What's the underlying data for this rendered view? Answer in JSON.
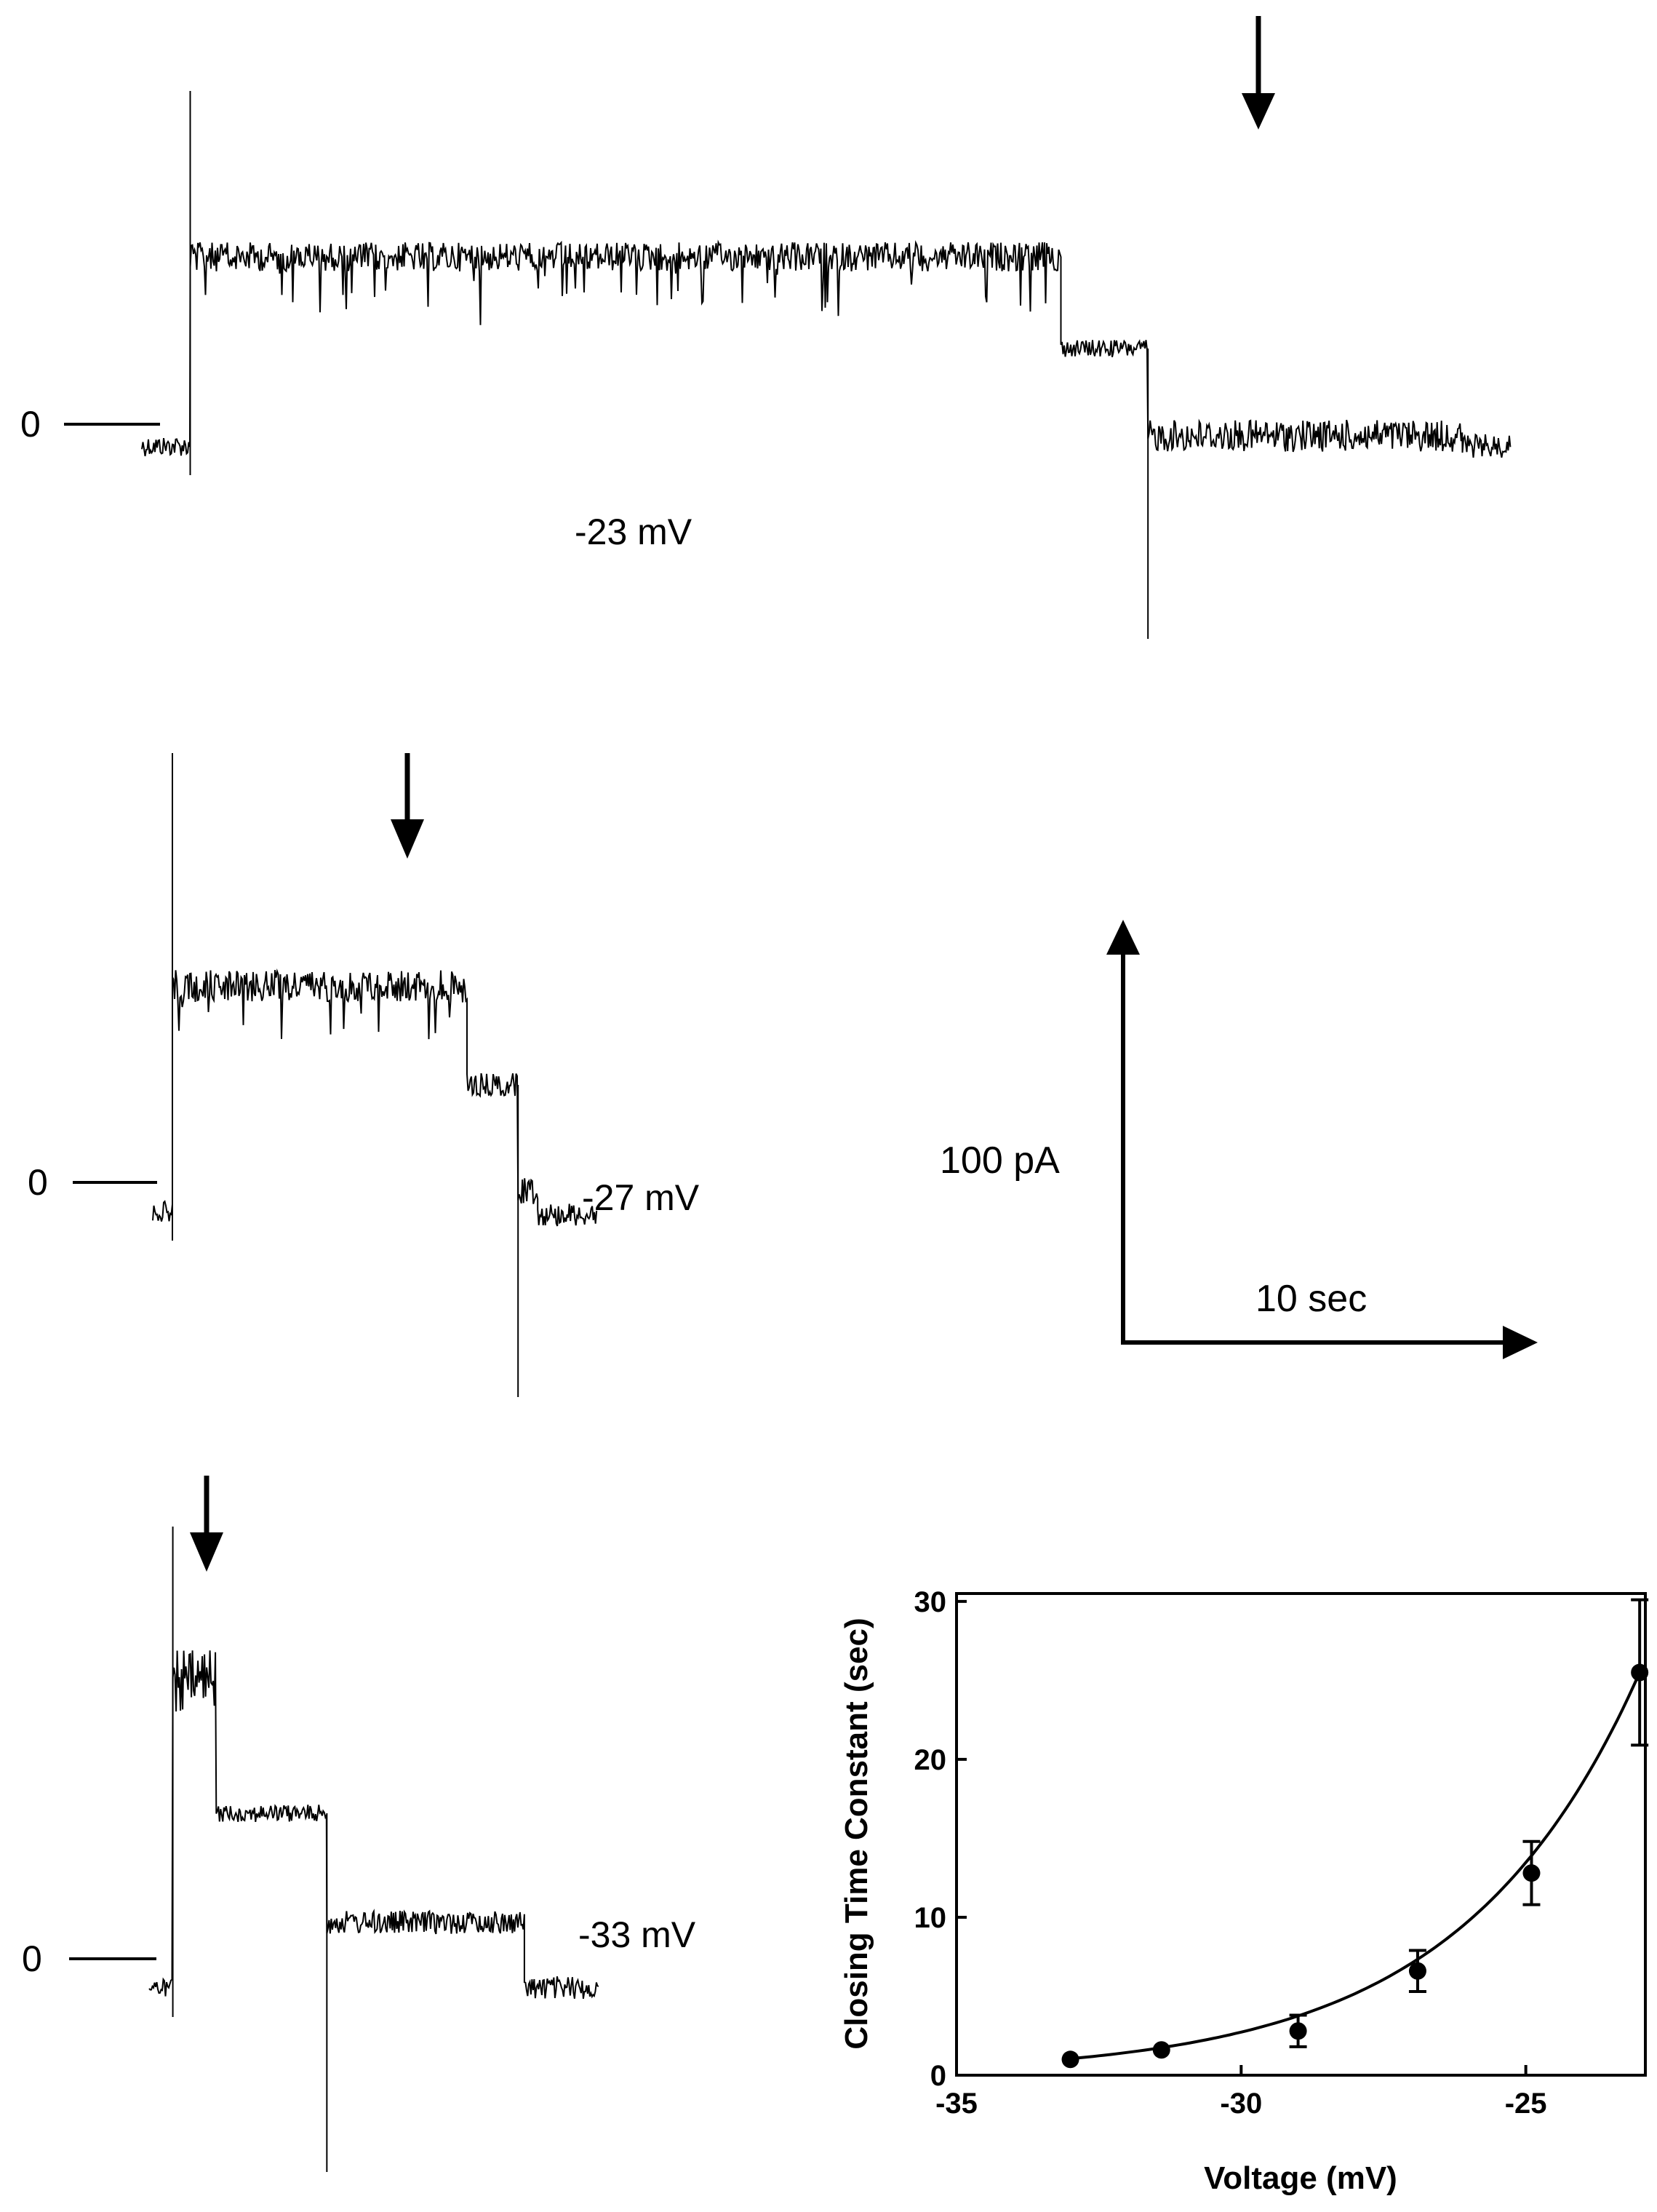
{
  "zero_label": "0",
  "traces": [
    {
      "voltage_label": "-23 mV",
      "segments": [
        {
          "name": "baseline-start",
          "t": [
            0,
            1.0
          ],
          "y": -15,
          "noise": 7
        },
        {
          "name": "open-level",
          "t": [
            1.0,
            19.0
          ],
          "y": 115,
          "noise": 10,
          "flicker": 40
        },
        {
          "name": "intermediate-level",
          "t": [
            19.0,
            20.8
          ],
          "y": 52,
          "noise": 6
        },
        {
          "name": "lower-level",
          "t": [
            20.8,
            27.3
          ],
          "y": -8,
          "noise": 11
        },
        {
          "name": "baseline-end",
          "t": [
            27.3,
            28.3
          ],
          "y": -15,
          "noise": 8
        }
      ]
    },
    {
      "voltage_label": "-27 mV",
      "segments": [
        {
          "name": "baseline-start",
          "t": [
            0,
            0.5
          ],
          "y": -20,
          "noise": 7
        },
        {
          "name": "open-level",
          "t": [
            0.5,
            8.0
          ],
          "y": 135,
          "noise": 11,
          "flicker": 35
        },
        {
          "name": "intermediate-level",
          "t": [
            8.0,
            9.3
          ],
          "y": 67,
          "noise": 8
        },
        {
          "name": "lower-level",
          "t": [
            9.3,
            9.8
          ],
          "y": -5,
          "noise": 10
        },
        {
          "name": "baseline-end",
          "t": [
            9.8,
            11.3
          ],
          "y": -22,
          "noise": 8
        }
      ]
    },
    {
      "voltage_label": "-33 mV",
      "segments": [
        {
          "name": "baseline-start",
          "t": [
            0,
            0.6
          ],
          "y": -20,
          "noise": 6
        },
        {
          "name": "open-level",
          "t": [
            0.6,
            1.7
          ],
          "y": 190,
          "noise": 22
        },
        {
          "name": "intermediate-level",
          "t": [
            1.7,
            4.5
          ],
          "y": 100,
          "noise": 6
        },
        {
          "name": "lower-level",
          "t": [
            4.5,
            9.5
          ],
          "y": 25,
          "noise": 8
        },
        {
          "name": "baseline-end",
          "t": [
            9.5,
            11.4
          ],
          "y": -20,
          "noise": 8
        }
      ]
    }
  ],
  "scale_bar": {
    "current_label": "100 pA",
    "time_label": "10 sec"
  },
  "chart_data": {
    "type": "scatter",
    "title": "",
    "xlabel": "Voltage (mV)",
    "ylabel": "Closing Time Constant (sec)",
    "xlim": [
      -35,
      -22.9
    ],
    "ylim": [
      0,
      30.5
    ],
    "xticks": [
      -35,
      -30,
      -25
    ],
    "yticks": [
      0,
      10,
      20,
      30
    ],
    "grid": false,
    "points": [
      {
        "x": -33.0,
        "y": 1.0,
        "err": 0
      },
      {
        "x": -31.4,
        "y": 1.6,
        "err": 0
      },
      {
        "x": -29.0,
        "y": 2.8,
        "err": 1.0
      },
      {
        "x": -26.9,
        "y": 6.6,
        "err": 1.3
      },
      {
        "x": -24.9,
        "y": 12.8,
        "err": 2.0
      },
      {
        "x": -23.0,
        "y": 25.5,
        "err": 4.6
      }
    ],
    "fit": {
      "type": "exponential",
      "a": 25.5,
      "x0": -23.0,
      "k": 0.3193,
      "x_range": [
        -33.0,
        -23.0
      ]
    }
  }
}
